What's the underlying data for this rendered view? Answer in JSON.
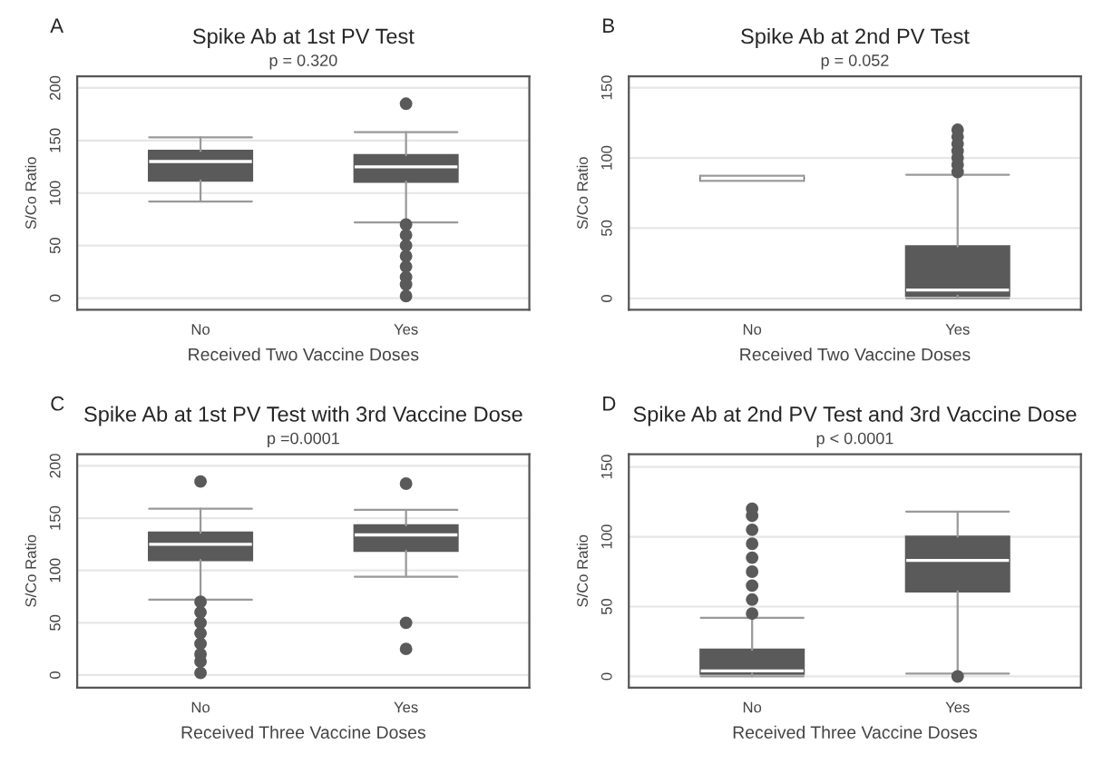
{
  "chart_data": [
    {
      "type": "box",
      "title": "Spike Ab at 1st PV Test",
      "subtitle": "p = 0.320",
      "annotations": [
        "A"
      ],
      "xlabel": "Received Two Vaccine Doses",
      "ylabel": "S/Co Ratio",
      "categories": [
        "No",
        "Yes"
      ],
      "color": "#5a5a5a",
      "ylim": [
        -11,
        211
      ],
      "yticks": [
        0,
        50,
        100,
        150,
        200
      ],
      "grid": "y",
      "boxes": [
        {
          "low": 92,
          "q1": 112,
          "median": 130,
          "q3": 140,
          "high": 153
        },
        {
          "low": 72,
          "q1": 111,
          "median": 125,
          "q3": 136,
          "high": 158,
          "outliers": [
            185,
            2,
            13,
            20,
            30,
            40,
            50,
            60,
            70
          ]
        }
      ]
    },
    {
      "type": "box",
      "title": "Spike Ab at 2nd PV Test",
      "subtitle": "p = 0.052",
      "annotations": [
        "B"
      ],
      "xlabel": "Received Two Vaccine Doses",
      "ylabel": "S/Co Ratio",
      "categories": [
        "No",
        "Yes"
      ],
      "color": "#5a5a5a",
      "ylim": [
        -8,
        158
      ],
      "yticks": [
        0,
        50,
        100,
        150
      ],
      "grid": "y",
      "boxes": [
        {
          "low": 84,
          "q1": 84,
          "median": 85.5,
          "q3": 87,
          "high": 87
        },
        {
          "low": 0,
          "q1": 2,
          "median": 6,
          "q3": 37,
          "high": 88,
          "outliers": [
            90,
            95,
            100,
            105,
            110,
            115,
            120
          ]
        }
      ]
    },
    {
      "type": "box",
      "title": "Spike Ab at 1st PV Test with 3rd Vaccine Dose",
      "subtitle": "p =0.0001",
      "annotations": [
        "C"
      ],
      "xlabel": "Received Three Vaccine Doses",
      "ylabel": "S/Co Ratio",
      "categories": [
        "No",
        "Yes"
      ],
      "color": "#5a5a5a",
      "ylim": [
        -12,
        211
      ],
      "yticks": [
        0,
        50,
        100,
        150,
        200
      ],
      "grid": "y",
      "boxes": [
        {
          "low": 72,
          "q1": 110,
          "median": 125,
          "q3": 136,
          "high": 159,
          "outliers": [
            185,
            2,
            13,
            20,
            30,
            40,
            50,
            60,
            70
          ]
        },
        {
          "low": 94,
          "q1": 119,
          "median": 134,
          "q3": 143,
          "high": 158,
          "outliers": [
            183,
            50,
            25
          ]
        }
      ]
    },
    {
      "type": "box",
      "title": "Spike Ab at 2nd PV Test and 3rd Vaccine Dose",
      "subtitle": "p < 0.0001",
      "annotations": [
        "D"
      ],
      "xlabel": "Received Three Vaccine Doses",
      "ylabel": "S/Co Ratio",
      "categories": [
        "No",
        "Yes"
      ],
      "color": "#5a5a5a",
      "ylim": [
        -8,
        159
      ],
      "yticks": [
        0,
        50,
        100,
        150
      ],
      "grid": "y",
      "boxes": [
        {
          "low": 0,
          "q1": 2,
          "median": 4,
          "q3": 19,
          "high": 42,
          "outliers": [
            45,
            55,
            65,
            75,
            85,
            95,
            105,
            115,
            120
          ]
        },
        {
          "low": 2,
          "q1": 61,
          "median": 83,
          "q3": 100,
          "high": 118,
          "outliers": [
            0
          ]
        }
      ]
    }
  ]
}
